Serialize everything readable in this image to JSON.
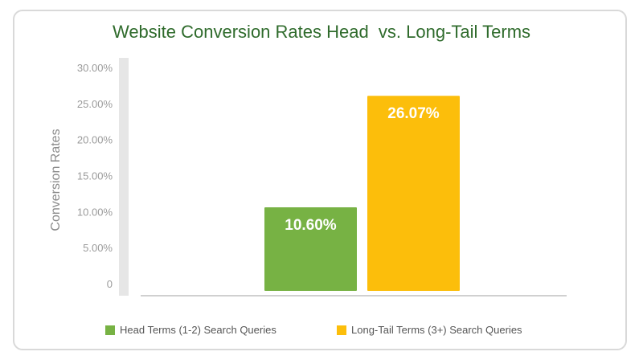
{
  "colors": {
    "title": "#2f6b2c",
    "head": "#77b244",
    "longtail": "#fcbe0b",
    "axis": "#e6e6e6",
    "tick_text": "#9a9a9a"
  },
  "chart_data": {
    "type": "bar",
    "title": "Website Conversion Rates Head  vs. Long-Tail Terms",
    "xlabel": "",
    "ylabel": "Conversion Rates",
    "ylim": [
      0,
      30
    ],
    "yticks": [
      {
        "value": 0,
        "label": "0"
      },
      {
        "value": 5,
        "label": "5.00%"
      },
      {
        "value": 10,
        "label": "10.00%"
      },
      {
        "value": 15,
        "label": "15.00%"
      },
      {
        "value": 20,
        "label": "20.00%"
      },
      {
        "value": 25,
        "label": "25.00%"
      },
      {
        "value": 30,
        "label": "30.00%"
      }
    ],
    "series": [
      {
        "name": "Head Terms (1-2) Search Queries",
        "value": 10.6,
        "label": "10.60%",
        "color": "#77b244"
      },
      {
        "name": "Long-Tail Terms (3+) Search Queries",
        "value": 26.07,
        "label": "26.07%",
        "color": "#fcbe0b"
      }
    ],
    "grid": false,
    "legend_position": "bottom"
  }
}
